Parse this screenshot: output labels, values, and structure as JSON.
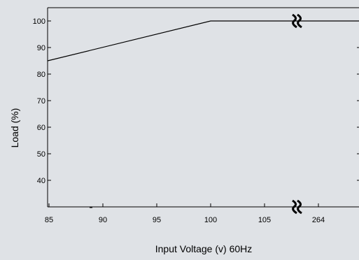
{
  "chart_data": {
    "type": "line",
    "title": "",
    "xlabel": "Input Voltage (v) 60Hz",
    "ylabel": "Load (%)",
    "x_ticks": [
      "85",
      "90",
      "95",
      "100",
      "105",
      "264"
    ],
    "y_ticks": [
      40,
      50,
      60,
      70,
      80,
      90,
      100
    ],
    "ylim": [
      30,
      105
    ],
    "x_axis_break_after": "105",
    "grid": false,
    "series": [
      {
        "points": [
          {
            "x": "85",
            "y": 85
          },
          {
            "x": "100",
            "y": 100
          },
          {
            "x": "264",
            "y": 100
          }
        ]
      }
    ]
  }
}
